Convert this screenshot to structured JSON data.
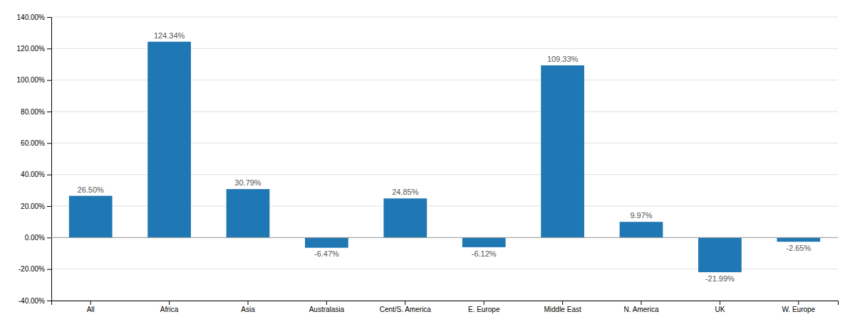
{
  "chart_data": {
    "type": "bar",
    "categories": [
      "All",
      "Africa",
      "Asia",
      "Australasia",
      "Cent/S. America",
      "E. Europe",
      "Middle East",
      "N. America",
      "UK",
      "W. Europe"
    ],
    "values": [
      26.5,
      124.34,
      30.79,
      -6.47,
      24.85,
      -6.12,
      109.33,
      9.97,
      -21.99,
      -2.65
    ],
    "value_labels": [
      "26.50%",
      "124.34%",
      "30.79%",
      "-6.47%",
      "24.85%",
      "-6.12%",
      "109.33%",
      "9.97%",
      "-21.99%",
      "-2.65%"
    ],
    "ylim": [
      -40,
      140
    ],
    "yticks": [
      {
        "value": -40,
        "label": "-40.00%"
      },
      {
        "value": -20,
        "label": "-20.00%"
      },
      {
        "value": 0,
        "label": "0.00%"
      },
      {
        "value": 20,
        "label": "20.00%"
      },
      {
        "value": 40,
        "label": "40.00%"
      },
      {
        "value": 60,
        "label": "60.00%"
      },
      {
        "value": 80,
        "label": "80.00%"
      },
      {
        "value": 100,
        "label": "100.00%"
      },
      {
        "value": 120,
        "label": "120.00%"
      },
      {
        "value": 140,
        "label": "140.00%"
      }
    ],
    "grid": true,
    "data_labels": true
  }
}
